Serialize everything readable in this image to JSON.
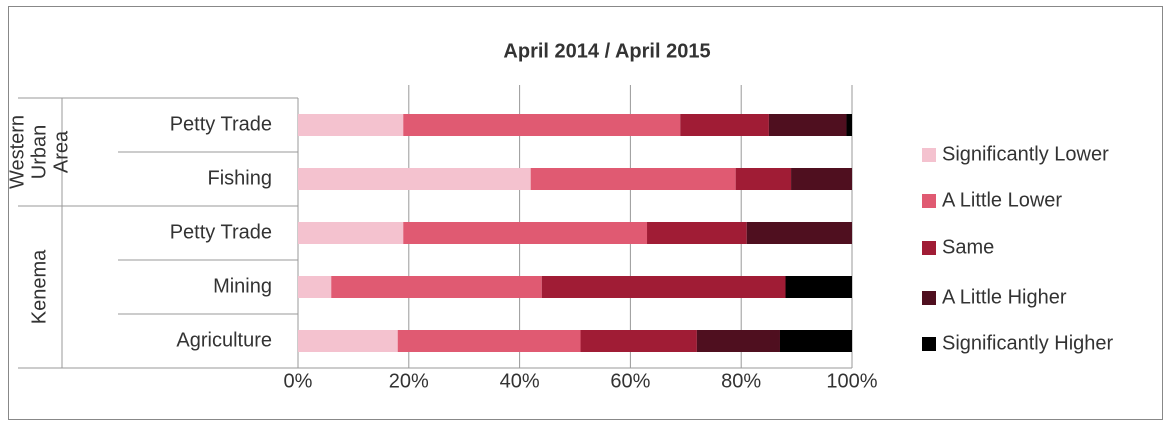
{
  "chart_data": {
    "type": "stacked_bar_horizontal",
    "title": "April 2014 / April 2015",
    "groups": [
      {
        "label": [
          "Western",
          "Urban",
          "Area"
        ],
        "categories": [
          "Petty Trade",
          "Fishing"
        ]
      },
      {
        "label": [
          "Kenema"
        ],
        "categories": [
          "Petty Trade",
          "Mining",
          "Agriculture"
        ]
      }
    ],
    "series": [
      {
        "name": "Significantly Lower",
        "color": "#f4c2cf",
        "values": [
          19,
          42,
          19,
          6,
          18
        ]
      },
      {
        "name": "A Little Lower",
        "color": "#e05a72",
        "values": [
          50,
          37,
          44,
          38,
          33
        ]
      },
      {
        "name": "Same",
        "color": "#a01c35",
        "values": [
          16,
          10,
          18,
          44,
          21
        ]
      },
      {
        "name": "A Little Higher",
        "color": "#4f0f1f",
        "values": [
          14,
          11,
          19,
          0,
          15
        ]
      },
      {
        "name": "Significantly Higher",
        "color": "#000000",
        "values": [
          1,
          0,
          0,
          12,
          13
        ]
      }
    ],
    "xlim": [
      0,
      100
    ],
    "xticks": [
      {
        "value": 0,
        "label": "0%"
      },
      {
        "value": 20,
        "label": "20%"
      },
      {
        "value": 40,
        "label": "40%"
      },
      {
        "value": 60,
        "label": "60%"
      },
      {
        "value": 80,
        "label": "80%"
      },
      {
        "value": 100,
        "label": "100%"
      }
    ],
    "grid": true,
    "legend": "right"
  }
}
